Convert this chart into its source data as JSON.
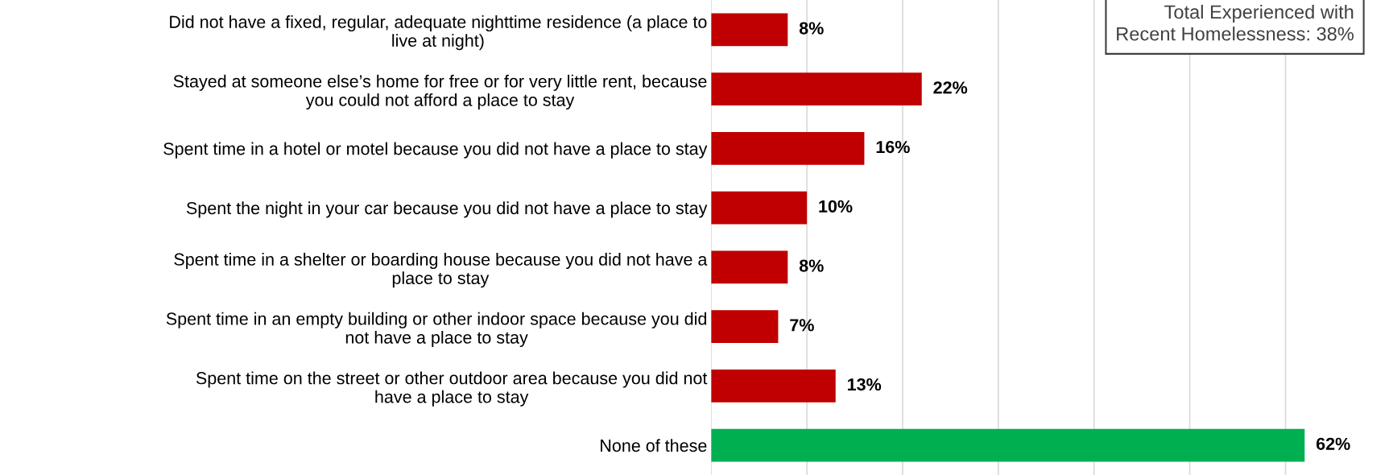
{
  "chart_data": {
    "type": "bar",
    "orientation": "horizontal",
    "categories": [
      "Did not have a fixed, regular, adequate nighttime residence (a place to\nlive at night)",
      "Stayed at someone else’s home for free or for very little rent, because\nyou could not afford a place to stay",
      "Spent time in a hotel or motel because you did not have a place to stay",
      "Spent the night in your car because you did not have a place to stay",
      "Spent time in a shelter or boarding house because you did not have a\nplace to stay",
      "Spent time in an empty building or other indoor space because you did\nnot have a place to stay",
      "Spent time on the street or other outdoor area because you did not\nhave a place to stay",
      "None of these"
    ],
    "values": [
      8,
      22,
      16,
      10,
      8,
      7,
      13,
      62
    ],
    "colors": [
      "#c00000",
      "#c00000",
      "#c00000",
      "#c00000",
      "#c00000",
      "#c00000",
      "#c00000",
      "#00b050"
    ],
    "value_labels": [
      "8%",
      "22%",
      "16%",
      "10%",
      "8%",
      "7%",
      "13%",
      "62%"
    ],
    "xticks": [
      {
        "value": 0,
        "label": null
      },
      {
        "value": 10,
        "label": null
      },
      {
        "value": 20,
        "label": null
      },
      {
        "value": 30,
        "label": null
      },
      {
        "value": 40,
        "label": null
      },
      {
        "value": 50,
        "label": null
      },
      {
        "value": 60,
        "label": null
      }
    ],
    "tick_labels": "y",
    "grid": "x",
    "annotations": [
      "Total Experienced with\nRecent Homelessness: 38%"
    ]
  }
}
